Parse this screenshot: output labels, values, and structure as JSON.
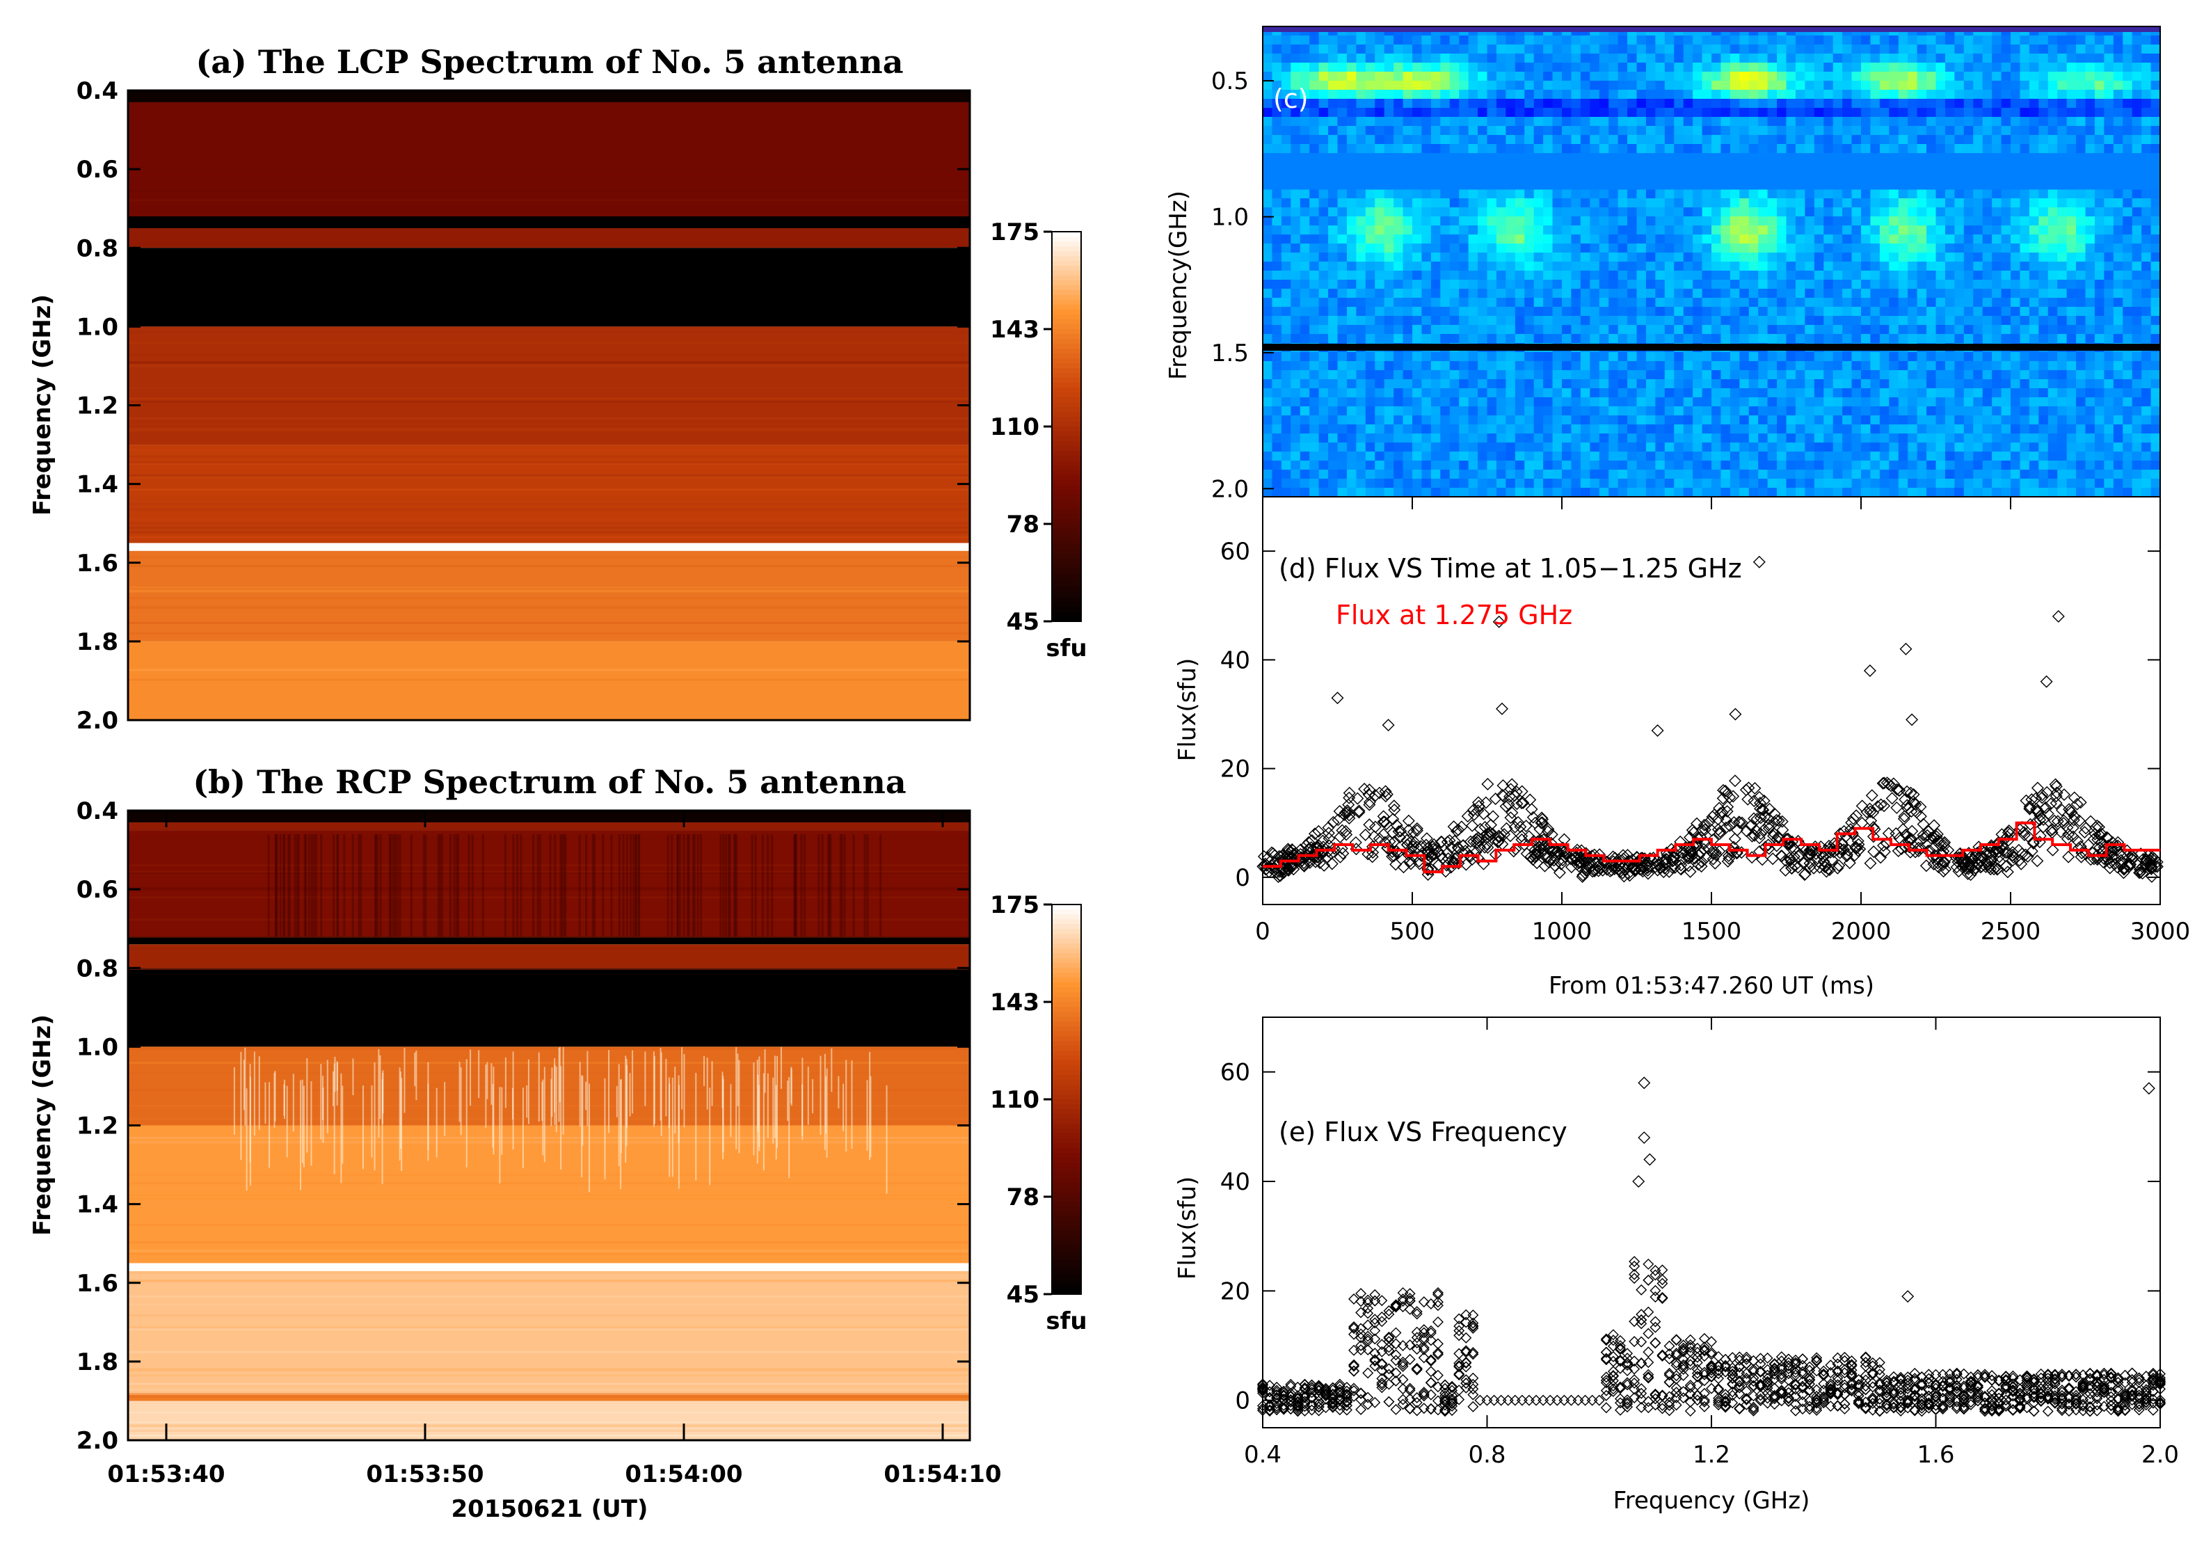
{
  "chart_data": [
    {
      "id": "a",
      "type": "heatmap",
      "title": "(a) The LCP Spectrum of No. 5 antenna",
      "ylabel": "Frequency (GHz)",
      "ylim": [
        0.4,
        2.0
      ],
      "yticks": [
        "0.4",
        "0.6",
        "0.8",
        "1.0",
        "1.2",
        "1.4",
        "1.6",
        "1.8",
        "2.0"
      ],
      "colorbar": {
        "ticks": [
          "175",
          "143",
          "110",
          "78",
          "45"
        ],
        "unit": "sfu",
        "range": [
          45,
          175
        ]
      },
      "bands": [
        {
          "from": 0.4,
          "to": 0.43,
          "value": 50
        },
        {
          "from": 0.43,
          "to": 0.72,
          "value": 88
        },
        {
          "from": 0.72,
          "to": 0.75,
          "value": 45
        },
        {
          "from": 0.75,
          "to": 0.8,
          "value": 100
        },
        {
          "from": 0.8,
          "to": 1.0,
          "value": 45
        },
        {
          "from": 1.0,
          "to": 1.3,
          "value": 110
        },
        {
          "from": 1.3,
          "to": 1.55,
          "value": 118
        },
        {
          "from": 1.55,
          "to": 1.57,
          "value": 175
        },
        {
          "from": 1.57,
          "to": 1.8,
          "value": 138
        },
        {
          "from": 1.8,
          "to": 2.0,
          "value": 146
        }
      ]
    },
    {
      "id": "b",
      "type": "heatmap",
      "title": "(b) The RCP Spectrum of No. 5 antenna",
      "ylabel": "Frequency (GHz)",
      "xlabel": "20150621 (UT)",
      "ylim": [
        0.4,
        2.0
      ],
      "yticks": [
        "0.4",
        "0.6",
        "0.8",
        "1.0",
        "1.2",
        "1.4",
        "1.6",
        "1.8",
        "2.0"
      ],
      "xticks": [
        "01:53:40",
        "01:53:50",
        "01:54:00",
        "01:54:10"
      ],
      "colorbar": {
        "ticks": [
          "175",
          "143",
          "110",
          "78",
          "45"
        ],
        "unit": "sfu",
        "range": [
          45,
          175
        ]
      },
      "bands": [
        {
          "from": 0.4,
          "to": 0.43,
          "value": 50
        },
        {
          "from": 0.43,
          "to": 0.45,
          "value": 100
        },
        {
          "from": 0.45,
          "to": 0.72,
          "value": 92
        },
        {
          "from": 0.72,
          "to": 0.74,
          "value": 45
        },
        {
          "from": 0.74,
          "to": 0.8,
          "value": 105
        },
        {
          "from": 0.8,
          "to": 1.0,
          "value": 45
        },
        {
          "from": 1.0,
          "to": 1.2,
          "value": 135
        },
        {
          "from": 1.2,
          "to": 1.55,
          "value": 150
        },
        {
          "from": 1.55,
          "to": 1.57,
          "value": 175
        },
        {
          "from": 1.57,
          "to": 1.88,
          "value": 160
        },
        {
          "from": 1.88,
          "to": 1.9,
          "value": 138
        },
        {
          "from": 1.9,
          "to": 2.0,
          "value": 165
        }
      ]
    },
    {
      "id": "c",
      "type": "heatmap",
      "label": "(c)",
      "ylabel": "Frequency(GHz)",
      "yticks": [
        "0.5",
        "1.0",
        "1.5",
        "2.0"
      ],
      "ytick_values": [
        0.5,
        1.0,
        1.5,
        2.0
      ],
      "ylim": [
        0.3,
        2.03
      ],
      "blank_band": [
        0.78,
        0.9
      ],
      "black_line": 1.48,
      "bursts": [
        {
          "t": 250,
          "f": 0.5,
          "strength": 0.9
        },
        {
          "t": 540,
          "f": 0.5,
          "strength": 0.9
        },
        {
          "t": 1620,
          "f": 0.5,
          "strength": 1.0
        },
        {
          "t": 2130,
          "f": 0.5,
          "strength": 0.8
        },
        {
          "t": 2760,
          "f": 0.5,
          "strength": 0.6
        },
        {
          "t": 400,
          "f": 1.05,
          "strength": 0.6
        },
        {
          "t": 840,
          "f": 1.05,
          "strength": 0.6
        },
        {
          "t": 1620,
          "f": 1.05,
          "strength": 0.8
        },
        {
          "t": 2150,
          "f": 1.05,
          "strength": 0.6
        },
        {
          "t": 2660,
          "f": 1.05,
          "strength": 0.6
        }
      ]
    },
    {
      "id": "d",
      "type": "scatter",
      "label": "(d) Flux VS Time at 1.05−1.25 GHz",
      "label2": "Flux at 1.275 GHz",
      "xlabel": "From 01:53:47.260 UT (ms)",
      "ylabel": "Flux(sfu)",
      "xlim": [
        0,
        3000
      ],
      "ylim": [
        -5,
        70
      ],
      "xticks": [
        "0",
        "500",
        "1000",
        "1500",
        "2000",
        "2500",
        "3000"
      ],
      "yticks": [
        "0",
        "20",
        "40",
        "60"
      ],
      "burst_peaks_ms": [
        350,
        800,
        1600,
        2100,
        2650
      ],
      "outliers": [
        {
          "x": 250,
          "y": 33
        },
        {
          "x": 420,
          "y": 28
        },
        {
          "x": 790,
          "y": 47
        },
        {
          "x": 800,
          "y": 31
        },
        {
          "x": 1320,
          "y": 27
        },
        {
          "x": 1580,
          "y": 30
        },
        {
          "x": 1660,
          "y": 58
        },
        {
          "x": 2030,
          "y": 38
        },
        {
          "x": 2150,
          "y": 42
        },
        {
          "x": 2170,
          "y": 29
        },
        {
          "x": 2620,
          "y": 36
        },
        {
          "x": 2660,
          "y": 48
        }
      ],
      "red_series": [
        2,
        3,
        4,
        5,
        6,
        5,
        6,
        5,
        4,
        1,
        2,
        4,
        3,
        5,
        6,
        7,
        6,
        5,
        4,
        3,
        3,
        4,
        5,
        6,
        7,
        6,
        5,
        4,
        6,
        7,
        6,
        5,
        8,
        9,
        7,
        6,
        5,
        4,
        4,
        5,
        6,
        7,
        10,
        7,
        6,
        5,
        4,
        6,
        5,
        5
      ]
    },
    {
      "id": "e",
      "type": "scatter",
      "label": "(e) Flux VS Frequency",
      "xlabel": "Frequency (GHz)",
      "ylabel": "Flux(sfu)",
      "xlim": [
        0.4,
        2.0
      ],
      "ylim": [
        -5,
        70
      ],
      "xticks": [
        "0.4",
        "0.8",
        "1.2",
        "1.6",
        "2.0"
      ],
      "yticks": [
        "0",
        "20",
        "40",
        "60"
      ],
      "outliers": [
        {
          "x": 1.08,
          "y": 58
        },
        {
          "x": 1.08,
          "y": 48
        },
        {
          "x": 1.09,
          "y": 44
        },
        {
          "x": 1.07,
          "y": 40
        },
        {
          "x": 1.55,
          "y": 19
        },
        {
          "x": 1.98,
          "y": 57
        }
      ]
    }
  ]
}
